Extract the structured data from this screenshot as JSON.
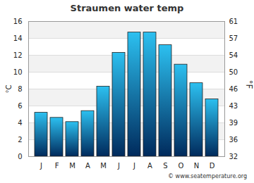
{
  "chart_data": {
    "type": "bar",
    "title": "Straumen water temp",
    "caption": "© www.seatemperature.org",
    "y_label": "°C",
    "y2_label": "°F",
    "categories": [
      "J",
      "F",
      "M",
      "A",
      "M",
      "J",
      "J",
      "A",
      "S",
      "O",
      "N",
      "D"
    ],
    "values": [
      5.2,
      4.6,
      4.1,
      5.4,
      8.3,
      12.3,
      14.7,
      14.7,
      13.2,
      10.9,
      8.7,
      6.8
    ],
    "color": "#2cc0f0",
    "ylim": [
      0,
      16
    ],
    "yticks": [
      0,
      2,
      4,
      6,
      8,
      10,
      12,
      14,
      16
    ],
    "y2lim": [
      32,
      60.8
    ],
    "y2ticks": [
      32,
      {
        "value": 35.6,
        "label": "36"
      },
      {
        "value": 39.2,
        "label": "39"
      },
      {
        "value": 42.8,
        "label": "43"
      },
      {
        "value": 46.4,
        "label": "46"
      },
      50,
      {
        "value": 53.6,
        "label": "54"
      },
      {
        "value": 57.2,
        "label": "57"
      },
      {
        "value": 60.8,
        "label": "61"
      }
    ],
    "grid": true
  }
}
